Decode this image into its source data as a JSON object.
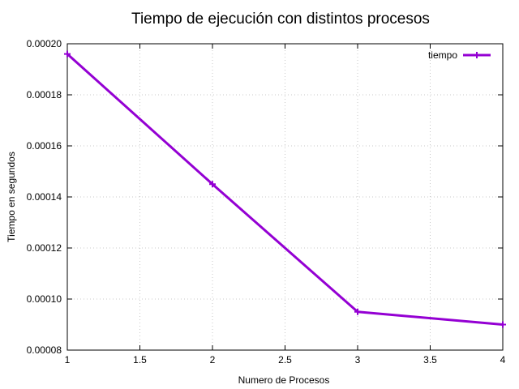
{
  "chart_data": {
    "type": "line",
    "title": "Tiempo de ejecución con distintos procesos",
    "xlabel": "Numero de Procesos",
    "ylabel": "Tiempo en segundos",
    "xlim": [
      1,
      4
    ],
    "ylim": [
      8e-05,
      0.0002
    ],
    "x_ticks": [
      "1",
      "1.5",
      "2",
      "2.5",
      "3",
      "3.5",
      "4"
    ],
    "y_ticks": [
      "0.00008",
      "0.00010",
      "0.00012",
      "0.00014",
      "0.00016",
      "0.00018",
      "0.00020"
    ],
    "grid": true,
    "legend_position": "top-right",
    "series": [
      {
        "name": "tiempo",
        "color": "#9400d3",
        "marker": "plus",
        "x": [
          1,
          2,
          3,
          4
        ],
        "y": [
          0.000196,
          0.000145,
          9.5e-05,
          9e-05
        ]
      }
    ]
  }
}
